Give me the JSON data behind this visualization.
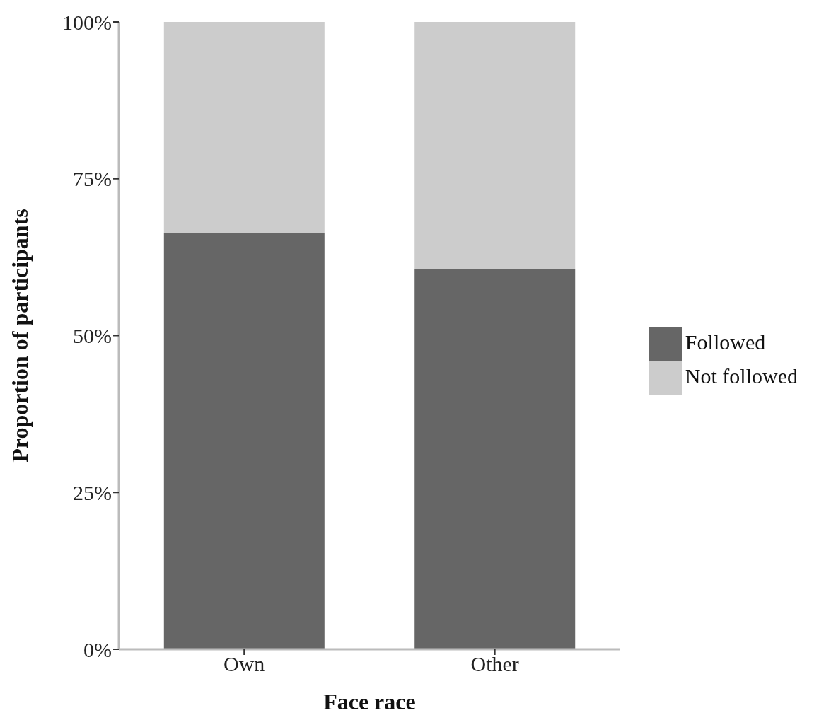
{
  "chart_data": {
    "type": "bar",
    "stacked": true,
    "xlabel": "Face race",
    "ylabel": "Proportion of participants",
    "categories": [
      "Own",
      "Other"
    ],
    "series": [
      {
        "name": "Followed",
        "color": "#666666",
        "values": [
          66.4,
          60.6
        ]
      },
      {
        "name": "Not followed",
        "color": "#cccccc",
        "values": [
          33.6,
          39.4
        ]
      }
    ],
    "ylim": [
      0,
      100
    ],
    "yticks": [
      {
        "value": 0,
        "label": "0%"
      },
      {
        "value": 25,
        "label": "25%"
      },
      {
        "value": 50,
        "label": "50%"
      },
      {
        "value": 75,
        "label": "75%"
      },
      {
        "value": 100,
        "label": "100%"
      }
    ],
    "grid": false,
    "legend": "right"
  }
}
